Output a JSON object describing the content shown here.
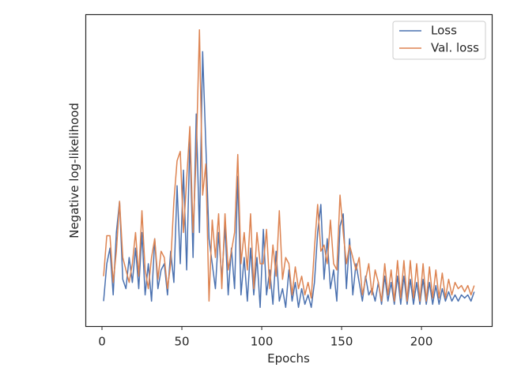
{
  "chart_data": {
    "type": "line",
    "xlabel": "Epochs",
    "ylabel": "Negative log-likelihood",
    "xlim": [
      -10.4,
      244
    ],
    "xticks": [
      0,
      50,
      100,
      150,
      200
    ],
    "ylim": [
      0,
      100
    ],
    "legend": "upper right",
    "x": [
      1,
      3,
      5,
      7,
      9,
      11,
      13,
      15,
      17,
      19,
      21,
      23,
      25,
      27,
      29,
      31,
      33,
      35,
      37,
      39,
      41,
      43,
      45,
      47,
      49,
      51,
      53,
      55,
      57,
      59,
      61,
      63,
      65,
      67,
      69,
      71,
      73,
      75,
      77,
      79,
      81,
      83,
      85,
      87,
      89,
      91,
      93,
      95,
      97,
      99,
      101,
      103,
      105,
      107,
      109,
      111,
      113,
      115,
      117,
      119,
      121,
      123,
      125,
      127,
      129,
      131,
      133,
      135,
      137,
      139,
      141,
      143,
      145,
      147,
      149,
      151,
      153,
      155,
      157,
      159,
      161,
      163,
      165,
      167,
      169,
      171,
      173,
      175,
      177,
      179,
      181,
      183,
      185,
      187,
      189,
      191,
      193,
      195,
      197,
      199,
      201,
      203,
      205,
      207,
      209,
      211,
      213,
      215,
      217,
      219,
      221,
      223,
      225,
      227,
      229,
      231,
      233
    ],
    "series": [
      {
        "name": "Loss",
        "color": "#4c72b0",
        "values": [
          8,
          20,
          25,
          10,
          30,
          40,
          15,
          12,
          22,
          14,
          25,
          12,
          30,
          10,
          20,
          8,
          28,
          12,
          18,
          20,
          10,
          24,
          14,
          45,
          20,
          50,
          18,
          60,
          22,
          68,
          30,
          88,
          58,
          28,
          20,
          12,
          30,
          15,
          32,
          10,
          25,
          12,
          48,
          10,
          22,
          8,
          25,
          10,
          22,
          6,
          31,
          10,
          18,
          7,
          24,
          8,
          12,
          6,
          18,
          8,
          14,
          6,
          12,
          7,
          10,
          6,
          14,
          30,
          39,
          15,
          28,
          12,
          18,
          8,
          32,
          36,
          12,
          28,
          10,
          20,
          14,
          8,
          16,
          10,
          12,
          8,
          14,
          7,
          16,
          8,
          14,
          7,
          16,
          7,
          16,
          7,
          15,
          7,
          14,
          7,
          15,
          7,
          14,
          7,
          13,
          7,
          12,
          8,
          11,
          8,
          10,
          8,
          10,
          9,
          10,
          8,
          11
        ]
      },
      {
        "name": "Val. loss",
        "color": "#dd8452",
        "values": [
          16,
          29,
          29,
          14,
          24,
          40,
          22,
          18,
          14,
          20,
          30,
          16,
          37,
          18,
          12,
          22,
          28,
          15,
          24,
          22,
          12,
          20,
          40,
          53,
          56,
          30,
          47,
          64,
          30,
          55,
          95,
          42,
          52,
          8,
          34,
          22,
          36,
          12,
          36,
          18,
          24,
          30,
          55,
          20,
          30,
          18,
          36,
          12,
          30,
          20,
          20,
          31,
          12,
          26,
          16,
          37,
          15,
          22,
          20,
          10,
          19,
          12,
          16,
          10,
          14,
          9,
          25,
          39,
          24,
          26,
          20,
          34,
          20,
          18,
          42,
          30,
          20,
          26,
          22,
          18,
          22,
          10,
          15,
          20,
          10,
          18,
          14,
          8,
          20,
          10,
          18,
          8,
          21,
          9,
          21,
          8,
          21,
          9,
          20,
          8,
          20,
          8,
          19,
          9,
          18,
          9,
          17,
          9,
          15,
          10,
          14,
          12,
          13,
          11,
          13,
          10,
          13
        ]
      }
    ]
  }
}
